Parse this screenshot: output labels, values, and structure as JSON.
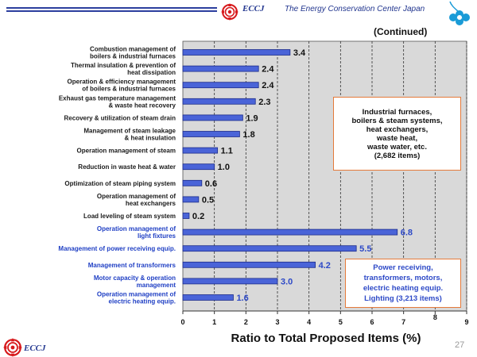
{
  "header": {
    "brand": "ECCJ",
    "organization": "The Energy Conservation Center Japan",
    "colors": {
      "brand_blue": "#22368f",
      "logo_red": "#d7191c",
      "clover_blue": "#1a9bd7"
    }
  },
  "continued_label": "(Continued)",
  "chart_data": {
    "type": "bar",
    "orientation": "horizontal",
    "categories": [
      "Combustion management of\nboilers & industrial furnaces",
      "Thermal insulation & prevention of\nheat dissipation",
      "Operation & efficiency management\nof boilers & industrial furnaces",
      "Exhaust gas temperature management\n& waste heat recovery",
      "Recovery & utilization of steam drain",
      "Management of steam leakage\n& heat insulation",
      "Operation management of steam",
      "Reduction in waste heat & water",
      "Optimization of steam piping system",
      "Operation management of\nheat exchangers",
      "Load leveling of steam system",
      "Operation management of\nlight fixtures",
      "Management of power receiving equip.",
      "Management of transformers",
      "Motor capacity & operation\nmanagement",
      "Operation management of\nelectric heating equip."
    ],
    "values": [
      3.4,
      2.4,
      2.4,
      2.3,
      1.9,
      1.8,
      1.1,
      1.0,
      0.6,
      0.5,
      0.2,
      6.8,
      5.5,
      4.2,
      3.0,
      1.6
    ],
    "value_labels": [
      "3.4",
      "2.4",
      "2.4",
      "2.3",
      "1.9",
      "1.8",
      "1.1",
      "1.0",
      "0.6",
      "0.5",
      "0.2",
      "6.8",
      "5.5",
      "4.2",
      "3.0",
      "1.6"
    ],
    "groups": [
      {
        "name": "Industrial furnaces, boilers & steam systems, heat exchangers, waste heat, waste water, etc. (2,682 items)",
        "start": 0,
        "end": 10
      },
      {
        "name": "Power receiving, transformers, motors, electric heating equip. Lighting (3,213 items)",
        "start": 11,
        "end": 15
      }
    ],
    "xlim": [
      0,
      9
    ],
    "xticks": [
      "0",
      "1",
      "2",
      "3",
      "4",
      "5",
      "6",
      "7",
      "8",
      "9"
    ],
    "xlabel": "Ratio to Total Proposed Items (%)",
    "ylabel": "",
    "title": "",
    "grid": "vertical dashed",
    "colors": {
      "bar": "#4a64d8",
      "bar_edge": "#1c2c8a",
      "plot_bg": "#d9d9d9",
      "group2_text": "#2d49c7"
    }
  },
  "annotations": {
    "box1": "Industrial furnaces,\nboilers & steam systems,\nheat exchangers,\nwaste heat,\nwaste water, etc.\n(2,682 items)",
    "box2": "Power receiving,\ntransformers, motors,\nelectric heating equip.\nLighting  (3,213 items)",
    "box_border_color": "#e57a3a"
  },
  "footer": {
    "brand": "ECCJ",
    "page_number": "27"
  }
}
